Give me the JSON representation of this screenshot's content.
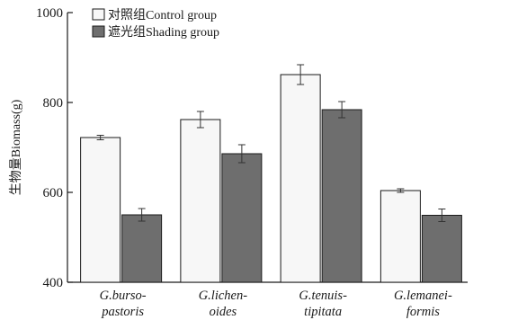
{
  "chart_data": {
    "type": "bar",
    "title": "",
    "xlabel": "",
    "ylabel": "生物量Biomass(g)",
    "ylim": [
      400,
      1000
    ],
    "yticks": [
      400,
      600,
      800,
      1000
    ],
    "grid": false,
    "legend_position": "top-left",
    "categories": [
      [
        "G.burso-",
        "pastoris"
      ],
      [
        "G.lichen-",
        "oides"
      ],
      [
        "G.tenuis-",
        "tipitata"
      ],
      [
        "G.lemanei-",
        "formis"
      ]
    ],
    "series": [
      {
        "name": "对照组Control group",
        "color": "#f7f7f7",
        "values": [
          722,
          762,
          862,
          604
        ],
        "errors": [
          5,
          18,
          22,
          4
        ]
      },
      {
        "name": "遮光组Shading group",
        "color": "#6e6e6e",
        "values": [
          550,
          686,
          784,
          549
        ],
        "errors": [
          14,
          20,
          18,
          14
        ]
      }
    ]
  }
}
